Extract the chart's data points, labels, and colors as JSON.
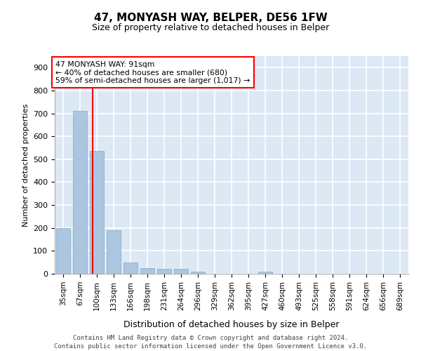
{
  "title": "47, MONYASH WAY, BELPER, DE56 1FW",
  "subtitle": "Size of property relative to detached houses in Belper",
  "xlabel": "Distribution of detached houses by size in Belper",
  "ylabel": "Number of detached properties",
  "categories": [
    "35sqm",
    "67sqm",
    "100sqm",
    "133sqm",
    "166sqm",
    "198sqm",
    "231sqm",
    "264sqm",
    "296sqm",
    "329sqm",
    "362sqm",
    "395sqm",
    "427sqm",
    "460sqm",
    "493sqm",
    "525sqm",
    "558sqm",
    "591sqm",
    "624sqm",
    "656sqm",
    "689sqm"
  ],
  "values": [
    200,
    710,
    535,
    190,
    50,
    25,
    22,
    20,
    10,
    0,
    0,
    0,
    8,
    0,
    0,
    0,
    0,
    0,
    0,
    0,
    0
  ],
  "bar_color": "#adc6e0",
  "bar_edge_color": "#7aaac8",
  "vline_color": "red",
  "annotation_text": "47 MONYASH WAY: 91sqm\n← 40% of detached houses are smaller (680)\n59% of semi-detached houses are larger (1,017) →",
  "annotation_box_color": "white",
  "annotation_box_edge": "red",
  "footer": "Contains HM Land Registry data © Crown copyright and database right 2024.\nContains public sector information licensed under the Open Government Licence v3.0.",
  "ylim": [
    0,
    950
  ],
  "yticks": [
    0,
    100,
    200,
    300,
    400,
    500,
    600,
    700,
    800,
    900
  ],
  "background_color": "#dde8f5",
  "grid_color": "white",
  "title_fontsize": 11,
  "subtitle_fontsize": 9,
  "ylabel_fontsize": 8,
  "xlabel_fontsize": 9,
  "tick_fontsize": 8,
  "footer_fontsize": 6.5
}
